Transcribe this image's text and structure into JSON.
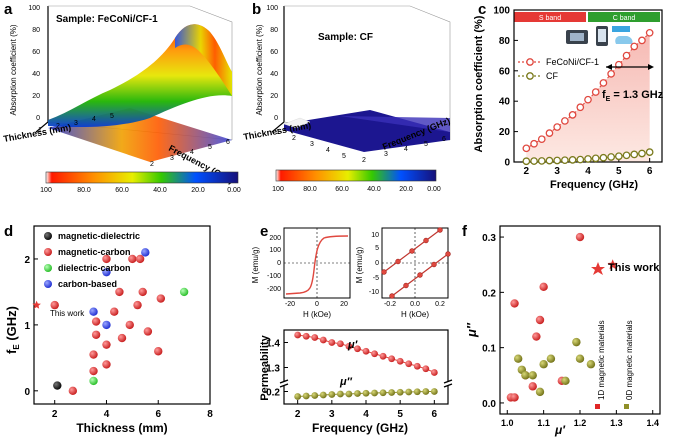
{
  "figure": {
    "panel_labels": [
      "a",
      "b",
      "c",
      "d",
      "e",
      "f"
    ]
  },
  "panel_a": {
    "sample_label": "Sample: FeCoNi/CF-1",
    "zlabel": "Absorption coefficient (%)",
    "xlabel": "Thickness (mm)",
    "ylabel": "Frequency (GHz)",
    "z_ticks": [
      "0",
      "20",
      "40",
      "60",
      "80",
      "100"
    ],
    "x_ticks": [
      "1",
      "2",
      "3",
      "4",
      "5"
    ],
    "y_ticks": [
      "2",
      "3",
      "4",
      "5",
      "6"
    ],
    "colorbar_ticks": [
      "100",
      "80.0",
      "60.0",
      "40.0",
      "20.0",
      "0.00"
    ]
  },
  "panel_b": {
    "sample_label": "Sample: CF",
    "zlabel": "Absorption coefficient (%)",
    "xlabel": "Thickness (mm)",
    "ylabel": "Frequency (GHz)",
    "z_ticks": [
      "0",
      "20",
      "40",
      "60",
      "80",
      "100"
    ],
    "x_ticks": [
      "1",
      "2",
      "3",
      "4",
      "5"
    ],
    "y_ticks": [
      "2",
      "3",
      "4",
      "5",
      "6"
    ],
    "colorbar_ticks": [
      "100",
      "80.0",
      "60.0",
      "40.0",
      "20.0",
      "0.00"
    ]
  },
  "panel_c": {
    "band_s": "S band",
    "band_c": "C band",
    "annotation": "f",
    "annotation_sub": "E",
    "annotation_rest": " = 1.3 GHz",
    "chart_data": {
      "type": "line",
      "xlabel": "Frequency (GHz)",
      "ylabel": "Absorption coefficient (%)",
      "xlim": [
        1.6,
        6.4
      ],
      "ylim": [
        0,
        100
      ],
      "x_ticks": [
        "2",
        "3",
        "4",
        "5",
        "6"
      ],
      "y_ticks": [
        "0",
        "20",
        "40",
        "60",
        "80",
        "100"
      ],
      "x": [
        2.0,
        2.25,
        2.5,
        2.75,
        3.0,
        3.25,
        3.5,
        3.75,
        4.0,
        4.25,
        4.5,
        4.75,
        5.0,
        5.25,
        5.5,
        5.75,
        6.0
      ],
      "series": [
        {
          "name": "FeCoNi/CF-1",
          "color": "#e0483f",
          "values": [
            9,
            12,
            15,
            19,
            23,
            27,
            31,
            36,
            41,
            46,
            52,
            58,
            64,
            70,
            76,
            80,
            85
          ]
        },
        {
          "name": "CF",
          "color": "#7a7a1c",
          "values": [
            0.5,
            0.6,
            0.7,
            0.9,
            1,
            1.2,
            1.4,
            1.6,
            2,
            2.4,
            2.8,
            3.3,
            3.8,
            4.4,
            5,
            5.6,
            6.5
          ]
        }
      ]
    }
  },
  "panel_d": {
    "chart_data": {
      "type": "scatter",
      "xlabel": "Thickness (mm)",
      "ylabel": "f_E (GHz)",
      "xlim": [
        1.2,
        8
      ],
      "ylim": [
        -0.2,
        2.5
      ],
      "x_ticks": [
        "2",
        "4",
        "6",
        "8"
      ],
      "y_ticks": [
        "0",
        "1",
        "2"
      ],
      "series": [
        {
          "name": "magnetic-dielectric",
          "color": "#111111",
          "points": [
            [
              2.1,
              0.08
            ]
          ]
        },
        {
          "name": "magnetic-carbon",
          "color": "#e02626",
          "points": [
            [
              2.0,
              1.3
            ],
            [
              2.7,
              0.0
            ],
            [
              3.5,
              0.3
            ],
            [
              3.5,
              0.55
            ],
            [
              3.6,
              0.85
            ],
            [
              3.6,
              1.05
            ],
            [
              4.0,
              0.4
            ],
            [
              4.0,
              0.7
            ],
            [
              4.0,
              2.0
            ],
            [
              4.3,
              1.2
            ],
            [
              4.5,
              1.5
            ],
            [
              4.6,
              0.8
            ],
            [
              4.9,
              1.0
            ],
            [
              5.0,
              2.0
            ],
            [
              5.2,
              1.3
            ],
            [
              5.3,
              2.0
            ],
            [
              5.4,
              1.5
            ],
            [
              5.6,
              0.9
            ],
            [
              6.0,
              0.6
            ],
            [
              6.1,
              1.4
            ]
          ]
        },
        {
          "name": "dielectric-carbon",
          "color": "#44dd44",
          "points": [
            [
              3.5,
              0.15
            ],
            [
              7.0,
              1.5
            ]
          ]
        },
        {
          "name": "carbon-based",
          "color": "#2d3fe0",
          "points": [
            [
              3.5,
              1.2
            ],
            [
              4.0,
              1.0
            ],
            [
              4.0,
              1.8
            ],
            [
              5.5,
              2.1
            ]
          ]
        },
        {
          "name": "This work",
          "color": "#e53935",
          "points": [
            [
              1.3,
              1.3
            ]
          ]
        }
      ],
      "this_work_label": "This work"
    }
  },
  "panel_e": {
    "hyst_left": {
      "xlabel": "H (kOe)",
      "ylabel": "M (emu/g)",
      "x_ticks": [
        "-20",
        "0",
        "20"
      ],
      "y_ticks": [
        "200",
        "100",
        "0",
        "-100",
        "-200"
      ]
    },
    "hyst_right": {
      "xlabel": "H (kOe)",
      "ylabel": "M (emu/g)",
      "x_ticks": [
        "-0.2",
        "0.0",
        "0.2"
      ],
      "y_ticks": [
        "10",
        "5",
        "0",
        "-5",
        "-10"
      ]
    },
    "permeability": {
      "chart_data": {
        "type": "line",
        "xlabel": "Frequency (GHz)",
        "ylabel": "Permeability",
        "x_ticks": [
          "2",
          "3",
          "4",
          "5",
          "6"
        ],
        "y_ticks": [
          "0.2",
          "1.3",
          "1.4"
        ],
        "x": [
          2.0,
          2.25,
          2.5,
          2.75,
          3.0,
          3.25,
          3.5,
          3.75,
          4.0,
          4.25,
          4.5,
          4.75,
          5.0,
          5.25,
          5.5,
          5.75,
          6.0
        ],
        "series": [
          {
            "name": "μ′",
            "color": "#e0483f",
            "values": [
              1.43,
              1.425,
              1.42,
              1.41,
              1.4,
              1.395,
              1.385,
              1.375,
              1.365,
              1.355,
              1.345,
              1.335,
              1.325,
              1.315,
              1.305,
              1.295,
              1.28
            ]
          },
          {
            "name": "μ″",
            "color": "#8f8f28",
            "values": [
              0.18,
              0.182,
              0.184,
              0.186,
              0.188,
              0.19,
              0.19,
              0.192,
              0.193,
              0.194,
              0.195,
              0.196,
              0.197,
              0.198,
              0.199,
              0.2,
              0.2
            ]
          }
        ],
        "label_mu1": "μ′",
        "label_mu2": "μ″"
      }
    }
  },
  "panel_f": {
    "legend_this_work": "This work",
    "legend_1d": "1D magnetic materials",
    "legend_0d": "0D magnetic materials",
    "chart_data": {
      "type": "scatter",
      "xlabel": "μ′",
      "ylabel": "μ″",
      "xlim": [
        0.98,
        1.42
      ],
      "ylim": [
        -0.02,
        0.32
      ],
      "x_ticks": [
        "1.0",
        "1.1",
        "1.2",
        "1.3",
        "1.4"
      ],
      "y_ticks": [
        "0.0",
        "0.1",
        "0.2",
        "0.3"
      ],
      "series": [
        {
          "name": "1D magnetic materials",
          "color": "#e02626",
          "points": [
            [
              1.01,
              0.01
            ],
            [
              1.02,
              0.01
            ],
            [
              1.02,
              0.18
            ],
            [
              1.05,
              0.05
            ],
            [
              1.07,
              0.03
            ],
            [
              1.08,
              0.12
            ],
            [
              1.09,
              0.15
            ],
            [
              1.1,
              0.21
            ],
            [
              1.15,
              0.04
            ],
            [
              1.2,
              0.3
            ]
          ]
        },
        {
          "name": "0D magnetic materials",
          "color": "#8f8f28",
          "points": [
            [
              1.03,
              0.08
            ],
            [
              1.04,
              0.06
            ],
            [
              1.05,
              0.05
            ],
            [
              1.07,
              0.05
            ],
            [
              1.09,
              0.02
            ],
            [
              1.1,
              0.07
            ],
            [
              1.12,
              0.08
            ],
            [
              1.16,
              0.04
            ],
            [
              1.19,
              0.11
            ],
            [
              1.2,
              0.08
            ],
            [
              1.23,
              0.07
            ]
          ]
        },
        {
          "name": "This work",
          "color": "#e53935",
          "points": [
            [
              1.29,
              0.25
            ]
          ]
        }
      ]
    }
  }
}
